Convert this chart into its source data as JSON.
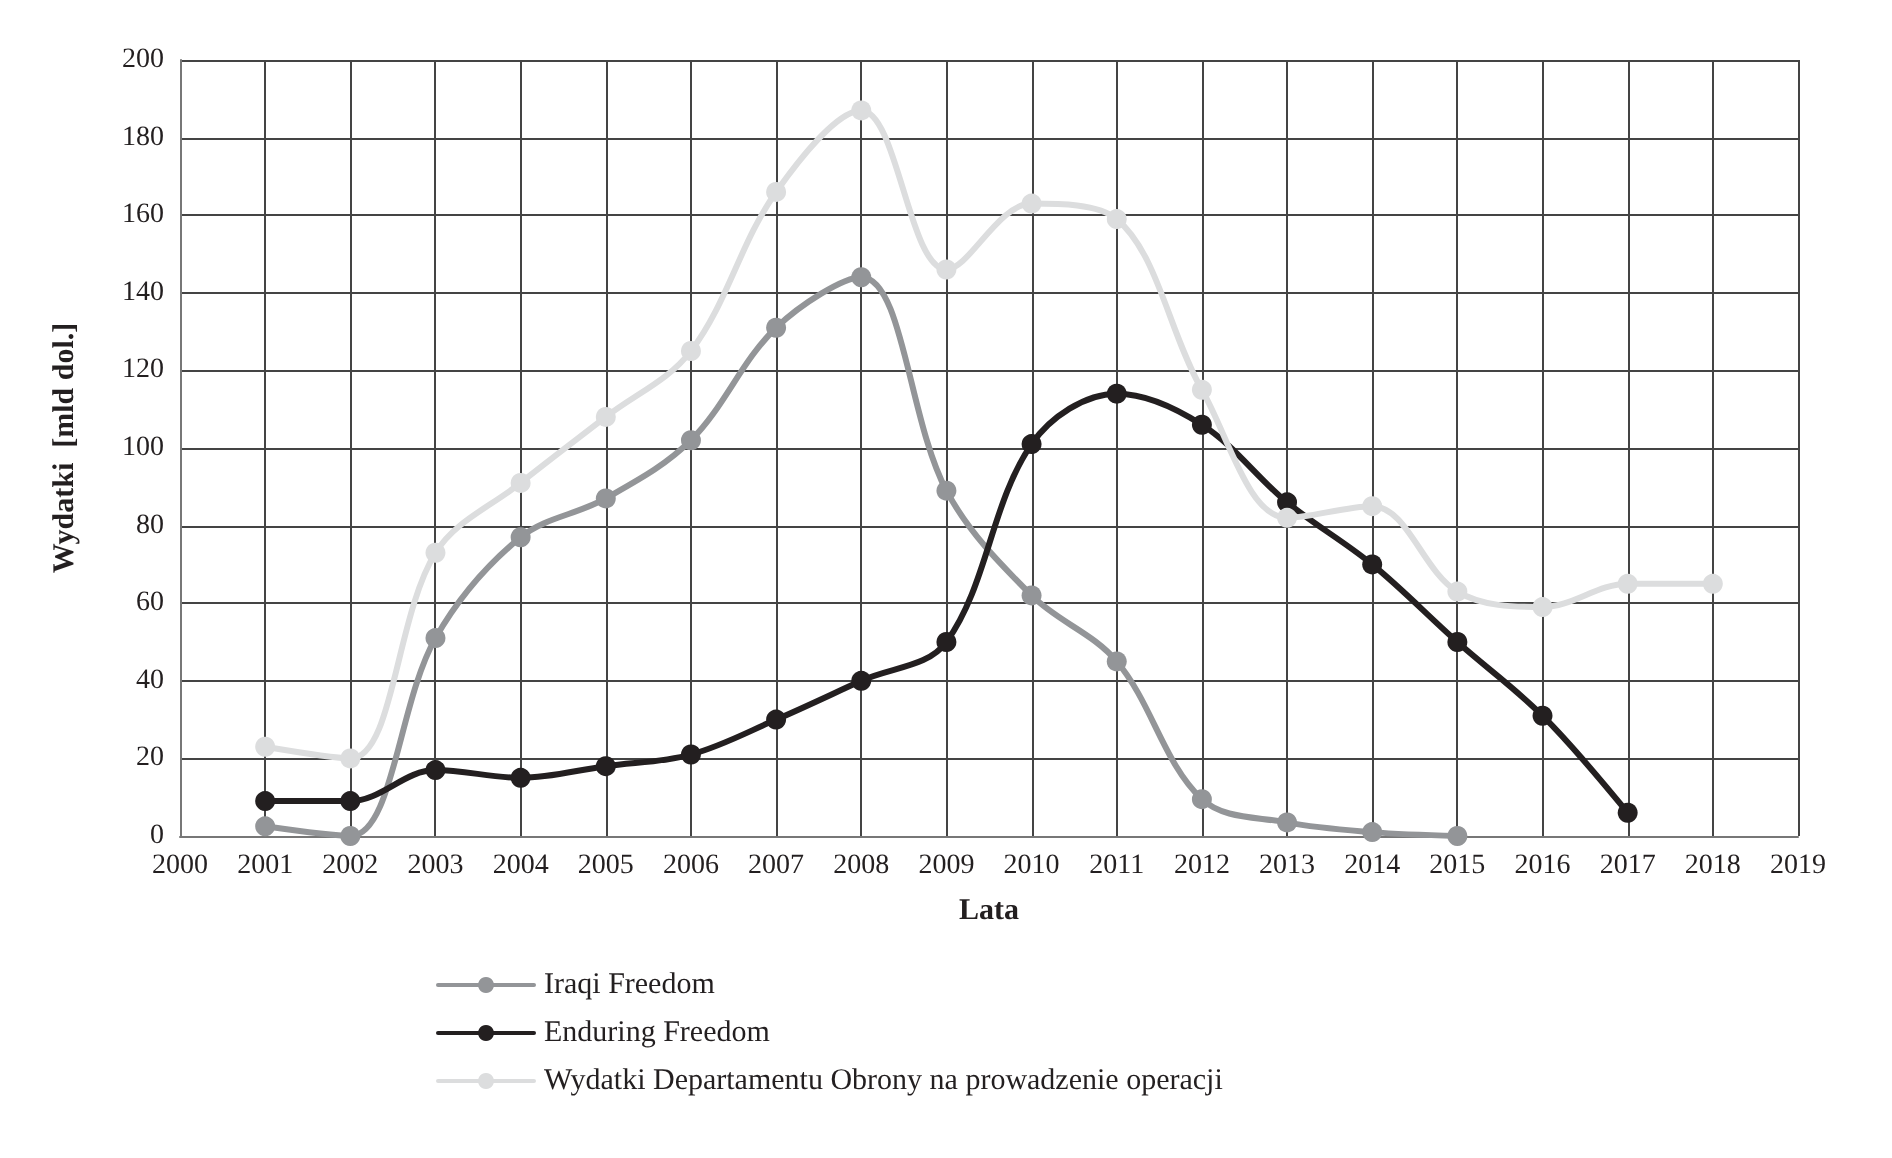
{
  "chart_data": {
    "type": "line",
    "xlabel": "Lata",
    "ylabel": "Wydatki  [mld dol.]",
    "xlim": [
      2000,
      2019
    ],
    "xticks": [
      2000,
      2001,
      2002,
      2003,
      2004,
      2005,
      2006,
      2007,
      2008,
      2009,
      2010,
      2011,
      2012,
      2013,
      2014,
      2015,
      2016,
      2017,
      2018,
      2019
    ],
    "ylim": [
      0,
      200
    ],
    "yticks": [
      0,
      20,
      40,
      60,
      80,
      100,
      120,
      140,
      160,
      180,
      200
    ],
    "grid": true,
    "legend": "bottom",
    "marker": "circle",
    "line_style": "solid",
    "series": [
      {
        "name": "Iraqi Freedom",
        "color": "#939598",
        "x": [
          2001,
          2002,
          2003,
          2004,
          2005,
          2006,
          2007,
          2008,
          2009,
          2010,
          2011,
          2012,
          2013,
          2014,
          2015
        ],
        "values": [
          2.5,
          0,
          51,
          77,
          87,
          102,
          131,
          144,
          89,
          62,
          45,
          9.5,
          3.5,
          1,
          0
        ]
      },
      {
        "name": "Enduring Freedom",
        "color": "#231f20",
        "x": [
          2001,
          2002,
          2003,
          2004,
          2005,
          2006,
          2007,
          2008,
          2009,
          2010,
          2011,
          2012,
          2013,
          2014,
          2015,
          2016,
          2017
        ],
        "values": [
          9,
          9,
          17,
          15,
          18,
          21,
          30,
          40,
          50,
          101,
          114,
          106,
          86,
          70,
          50,
          31,
          6
        ]
      },
      {
        "name": "Wydatki Departamentu Obrony na prowadzenie operacji",
        "color": "#dcddde",
        "x": [
          2001,
          2002,
          2003,
          2004,
          2005,
          2006,
          2007,
          2008,
          2009,
          2010,
          2011,
          2012,
          2013,
          2014,
          2015,
          2016,
          2017,
          2018
        ],
        "values": [
          23,
          20,
          73,
          91,
          108,
          125,
          166,
          187,
          146,
          163,
          159,
          115,
          82,
          85,
          63,
          59,
          65,
          65
        ]
      }
    ]
  }
}
